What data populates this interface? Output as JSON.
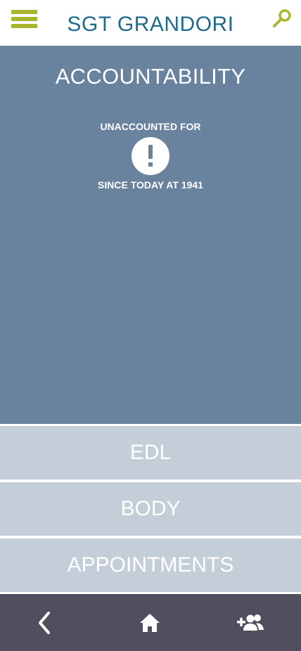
{
  "header": {
    "title": "SGT GRANDORI",
    "menu_icon": "hamburger-menu-icon",
    "search_icon": "search-icon",
    "accent_color": "#a9b52d",
    "title_color": "#1e6b8c"
  },
  "accountability": {
    "title": "ACCOUNTABILITY",
    "status": "UNACCOUNTED FOR",
    "alert_icon": "exclamation-icon",
    "since": "SINCE TODAY AT 1941",
    "panel_color": "#69829e"
  },
  "sections": {
    "edl": "EDL",
    "body": "BODY",
    "appointments": "APPOINTMENTS",
    "color": "#c4ced8"
  },
  "bottom_nav": {
    "back_icon": "chevron-left-icon",
    "home_icon": "home-icon",
    "add_person_icon": "add-person-icon",
    "color": "#4f4f60"
  }
}
